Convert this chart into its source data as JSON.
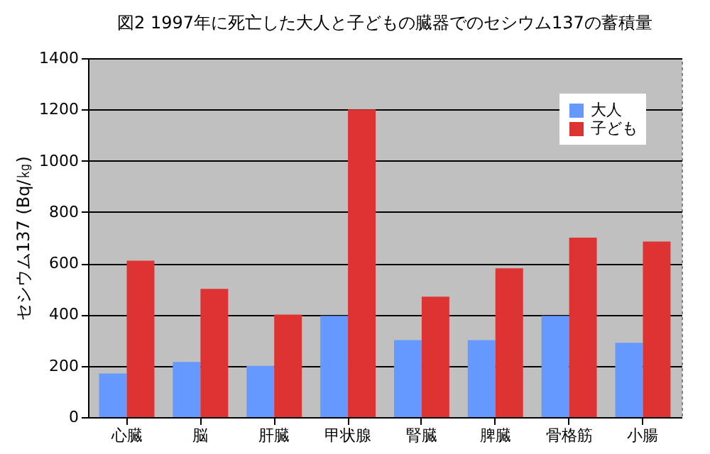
{
  "chart_data": {
    "type": "bar",
    "title": "図2  1997年に死亡した大人と子どもの臓器でのセシウム137の蓄積量",
    "categories": [
      "心臓",
      "脳",
      "肝臓",
      "甲状腺",
      "腎臓",
      "脾臓",
      "骨格筋",
      "小腸"
    ],
    "series": [
      {
        "name": "大人",
        "color": "#6699ff",
        "values": [
          170,
          215,
          200,
          395,
          300,
          300,
          395,
          290
        ]
      },
      {
        "name": "子ども",
        "color": "#dd3333",
        "values": [
          610,
          500,
          400,
          1200,
          470,
          580,
          700,
          685
        ]
      }
    ],
    "ylabel": "セシウム137 (Bq/㎏)",
    "ylim": [
      0,
      1400
    ],
    "yticks": [
      0,
      200,
      400,
      600,
      800,
      1000,
      1200,
      1400
    ],
    "grid": "y",
    "legend": "top right"
  }
}
